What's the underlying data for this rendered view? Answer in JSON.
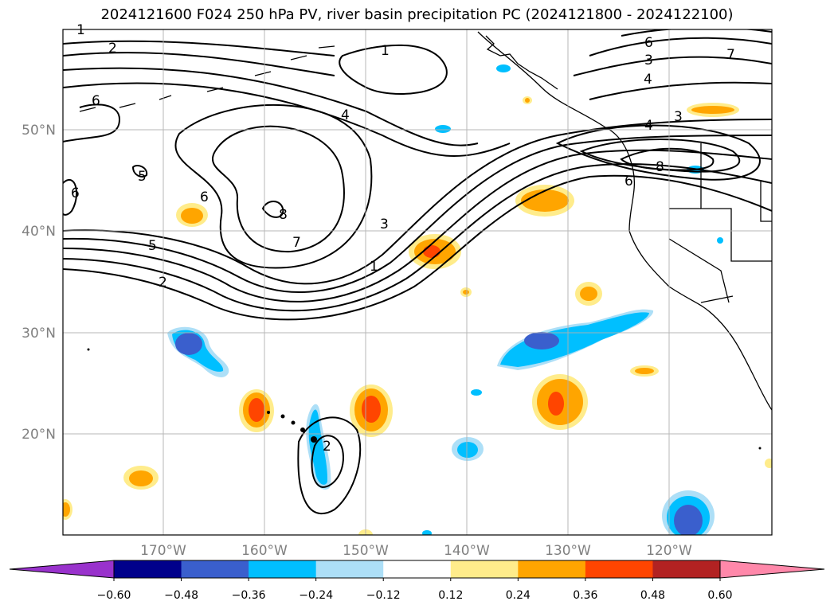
{
  "title": "2024121600 F024 250 hPa PV, river basin precipitation PC (2024121800 - 2024122100)",
  "lat_labels": [
    "50°N",
    "40°N",
    "30°N",
    "20°N"
  ],
  "lon_labels": [
    "170°W",
    "160°W",
    "150°W",
    "140°W",
    "130°W",
    "120°W"
  ],
  "colorbar": {
    "ticks": [
      "−0.60",
      "−0.48",
      "−0.36",
      "−0.24",
      "−0.12",
      "0.12",
      "0.24",
      "0.36",
      "0.48",
      "0.60"
    ],
    "colors": [
      "#9932CC",
      "#00008B",
      "#3A5FCD",
      "#00BFFF",
      "#ADDFF7",
      "#FFFFFF",
      "#FFEC8B",
      "#FFA500",
      "#FF4500",
      "#B22222",
      "#FF88AA"
    ]
  },
  "contour_labels": [
    "1",
    "2",
    "6",
    "6",
    "5",
    "5",
    "2",
    "1",
    "4",
    "6",
    "7",
    "8",
    "3",
    "1",
    "3",
    "6",
    "4",
    "3",
    "4",
    "8",
    "6",
    "7",
    "2"
  ]
}
